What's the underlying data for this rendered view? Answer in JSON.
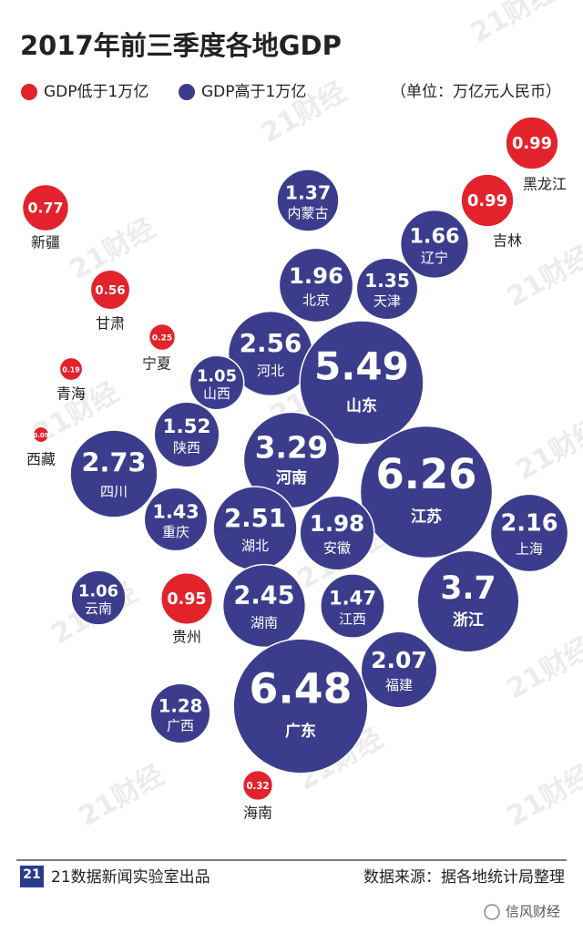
{
  "chart_data": {
    "type": "bubble",
    "title": "2017年前三季度各地GDP",
    "unit_note": "（单位：万亿元人民币）",
    "series": [
      {
        "name": "GDP低于1万亿",
        "color": "#e3232b",
        "categories": [
          "新疆",
          "甘肃",
          "宁夏",
          "青海",
          "西藏",
          "贵州",
          "海南",
          "吉林",
          "黑龙江"
        ],
        "values": [
          0.77,
          0.56,
          0.25,
          0.19,
          0.09,
          0.95,
          0.32,
          0.99,
          0.99
        ]
      },
      {
        "name": "GDP高于1万亿",
        "color": "#3b3d8c",
        "categories": [
          "内蒙古",
          "辽宁",
          "北京",
          "天津",
          "河北",
          "山东",
          "山西",
          "陕西",
          "四川",
          "河南",
          "江苏",
          "重庆",
          "湖北",
          "安徽",
          "上海",
          "云南",
          "湖南",
          "江西",
          "浙江",
          "福建",
          "广西",
          "广东"
        ],
        "values": [
          1.37,
          1.66,
          1.96,
          1.35,
          2.56,
          5.49,
          1.05,
          1.52,
          2.73,
          3.29,
          6.26,
          1.43,
          2.51,
          1.98,
          2.16,
          1.06,
          2.45,
          1.47,
          3.7,
          2.07,
          1.28,
          6.48
        ]
      }
    ]
  },
  "footer": {
    "logo": "21",
    "credit": "21数据新闻实验室出品",
    "source": "数据来源：据各地统计局整理",
    "watermark": "21财经",
    "account": "信风财经"
  }
}
